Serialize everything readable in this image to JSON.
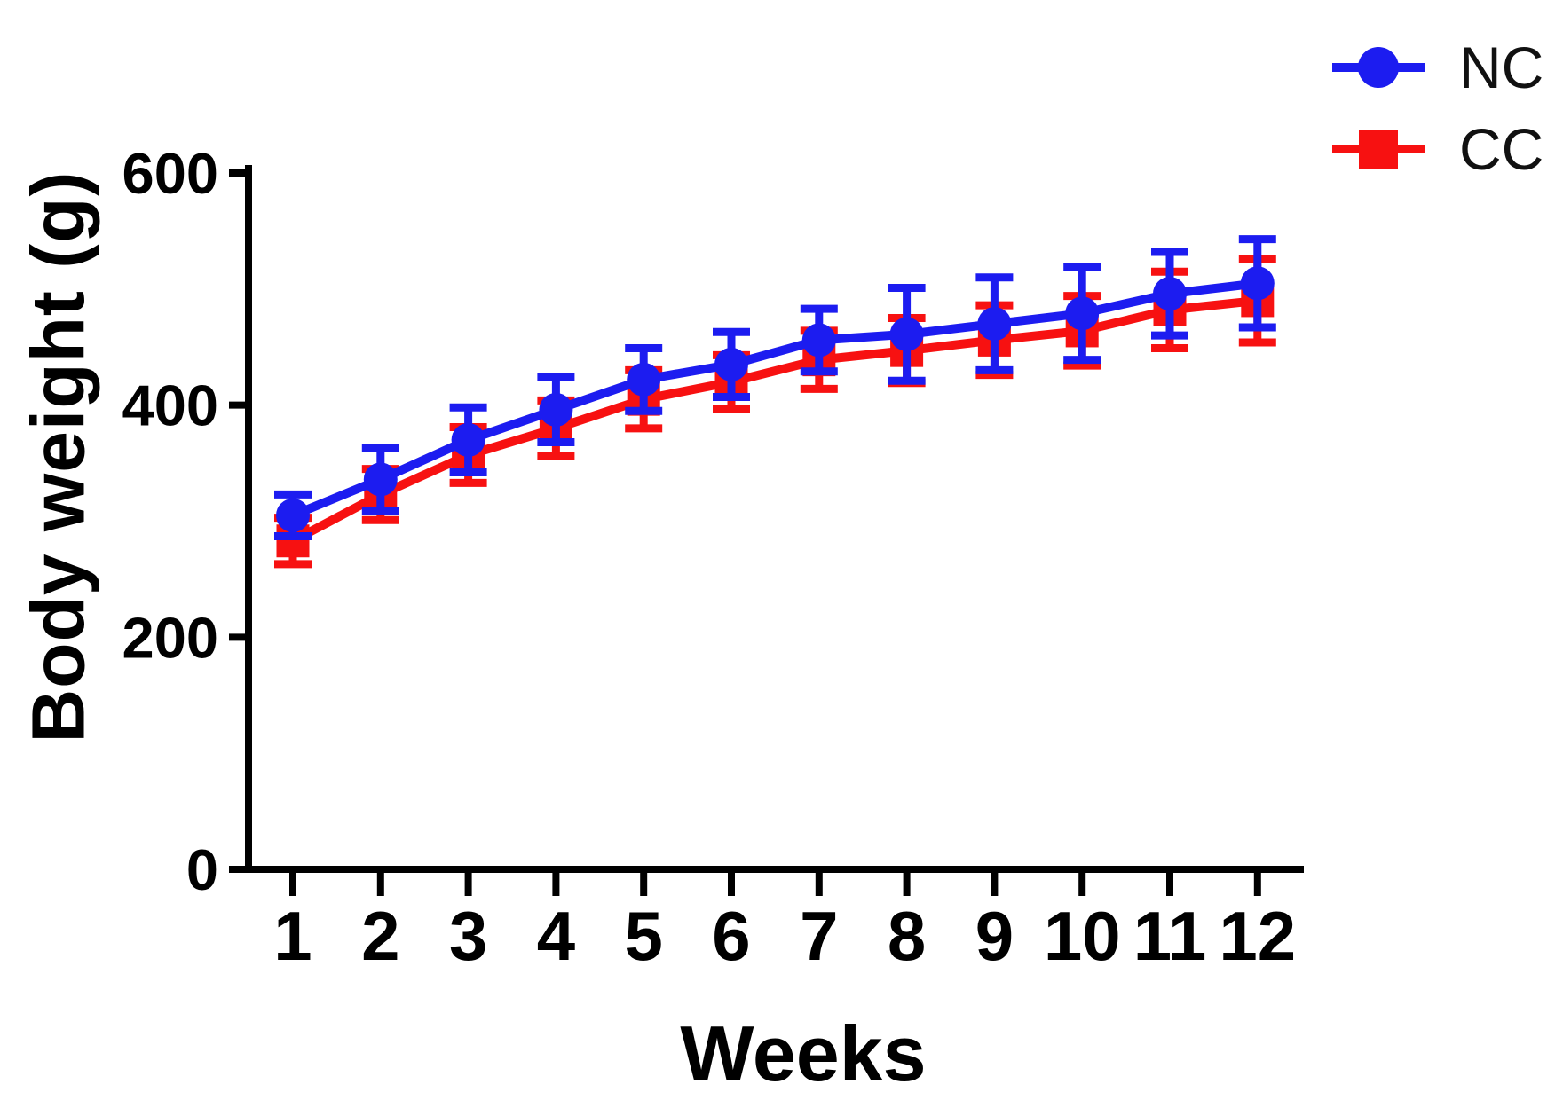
{
  "chart_data": {
    "type": "line",
    "title": "",
    "xlabel": "Weeks",
    "ylabel": "Body weight (g)",
    "x": [
      1,
      2,
      3,
      4,
      5,
      6,
      7,
      8,
      9,
      10,
      11,
      12
    ],
    "x_tick_labels": [
      "1",
      "2",
      "3",
      "4",
      "5",
      "6",
      "7",
      "8",
      "9",
      "10",
      "11",
      "12"
    ],
    "y_ticks": [
      0,
      200,
      400,
      600
    ],
    "y_tick_labels": [
      "0",
      "200",
      "400",
      "600"
    ],
    "ylim": [
      0,
      600
    ],
    "grid": false,
    "legend_position": "top-right",
    "error_bars": "symmetric with caps",
    "axis_color": "#000000",
    "background": "#ffffff",
    "series": [
      {
        "name": "NC",
        "marker": "circle",
        "color": "#1c1cf0",
        "values": [
          305,
          336,
          370,
          396,
          422,
          435,
          456,
          461,
          470,
          479,
          496,
          505
        ],
        "errors": [
          18,
          27,
          28,
          28,
          27,
          28,
          27,
          40,
          40,
          40,
          36,
          38
        ]
      },
      {
        "name": "CC",
        "marker": "square",
        "color": "#f71111",
        "values": [
          283,
          323,
          357,
          380,
          405,
          420,
          439,
          447,
          456,
          464,
          482,
          490
        ],
        "errors": [
          20,
          22,
          24,
          24,
          25,
          23,
          25,
          28,
          30,
          30,
          33,
          36
        ]
      }
    ]
  }
}
